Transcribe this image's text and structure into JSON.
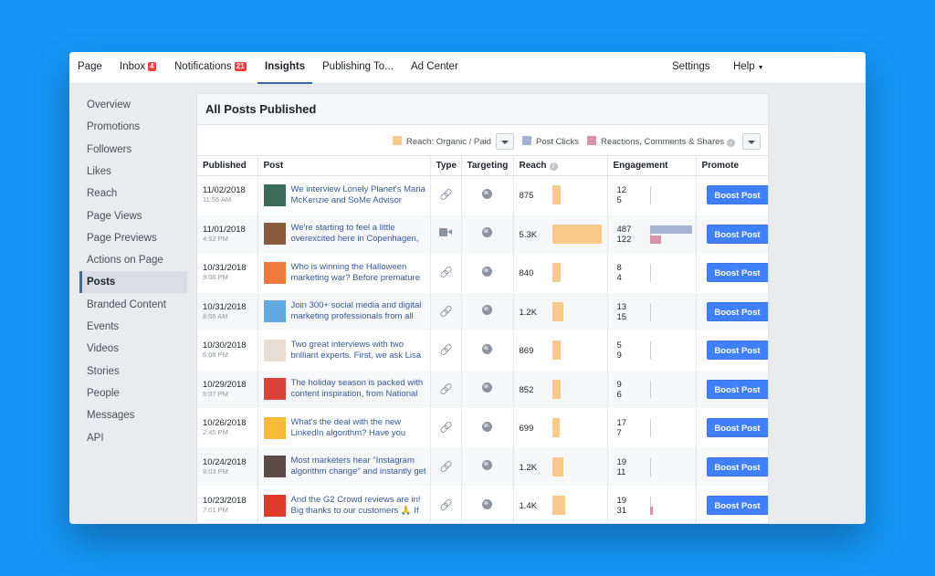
{
  "topnav": {
    "page": "Page",
    "inbox": "Inbox",
    "inbox_badge": "4",
    "notifications": "Notifications",
    "notifications_badge": "21",
    "insights": "Insights",
    "publishing": "Publishing To...",
    "ad_center": "Ad Center",
    "settings": "Settings",
    "help": "Help"
  },
  "sidebar": {
    "items": [
      "Overview",
      "Promotions",
      "Followers",
      "Likes",
      "Reach",
      "Page Views",
      "Page Previews",
      "Actions on Page",
      "Posts",
      "Branded Content",
      "Events",
      "Videos",
      "Stories",
      "People",
      "Messages",
      "API"
    ],
    "active": "Posts"
  },
  "panel": {
    "title": "All Posts Published",
    "legend": {
      "reach": "Reach: Organic / Paid",
      "post_clicks": "Post Clicks",
      "reactions": "Reactions, Comments & Shares"
    },
    "columns": {
      "published": "Published",
      "post": "Post",
      "type": "Type",
      "targeting": "Targeting",
      "reach": "Reach",
      "engagement": "Engagement",
      "promote": "Promote"
    },
    "boost_label": "Boost Post"
  },
  "colors": {
    "reach": "#f7c98b",
    "post_clicks": "#a4b3d1",
    "reactions": "#d993a6",
    "accent": "#4267b2",
    "boost": "#4080ff",
    "background": "#1596f5"
  },
  "posts": [
    {
      "date": "11/02/2018",
      "time": "11:55 AM",
      "text": "We interview Lonely Planet's Maria McKenzie and SoMe Advisor",
      "type": "link",
      "reach": "875",
      "reach_value": 875,
      "clicks": 12,
      "reactions": 5,
      "thumb": "#3d6b5a"
    },
    {
      "date": "11/01/2018",
      "time": "4:52 PM",
      "text": "We're starting to feel a little overexcited here in Copenhagen,",
      "type": "video",
      "reach": "5.3K",
      "reach_value": 5300,
      "clicks": 487,
      "reactions": 122,
      "thumb": "#8a5a3c"
    },
    {
      "date": "10/31/2018",
      "time": "9:06 PM",
      "text": "Who is winning the Halloween marketing war? Before premature",
      "type": "link",
      "reach": "840",
      "reach_value": 840,
      "clicks": 8,
      "reactions": 4,
      "thumb": "#f07a3a"
    },
    {
      "date": "10/31/2018",
      "time": "8:06 AM",
      "text": "Join 300+ social media and digital marketing professionals from all",
      "type": "link",
      "reach": "1.2K",
      "reach_value": 1200,
      "clicks": 13,
      "reactions": 15,
      "thumb": "#5fa8e0"
    },
    {
      "date": "10/30/2018",
      "time": "6:08 PM",
      "text": "Two great interviews with two brilliant experts. First, we ask Lisa",
      "type": "link",
      "reach": "869",
      "reach_value": 869,
      "clicks": 5,
      "reactions": 9,
      "thumb": "#e8ddd2"
    },
    {
      "date": "10/29/2018",
      "time": "5:07 PM",
      "text": "The holiday season is packed with content inspiration, from National",
      "type": "link",
      "reach": "852",
      "reach_value": 852,
      "clicks": 9,
      "reactions": 6,
      "thumb": "#d8443a"
    },
    {
      "date": "10/26/2018",
      "time": "2:45 PM",
      "text": "What's the deal with the new LinkedIn algorithm? Have you",
      "type": "link",
      "reach": "699",
      "reach_value": 699,
      "clicks": 17,
      "reactions": 7,
      "thumb": "#f6b93b"
    },
    {
      "date": "10/24/2018",
      "time": "9:03 PM",
      "text": "Most marketers hear \"Instagram algorithm change\" and instantly get",
      "type": "link",
      "reach": "1.2K",
      "reach_value": 1200,
      "clicks": 19,
      "reactions": 11,
      "thumb": "#5a4a48"
    },
    {
      "date": "10/23/2018",
      "time": "7:01 PM",
      "text": "And the G2 Crowd reviews are in! Big thanks to our customers 🙏 If",
      "type": "link",
      "reach": "1.4K",
      "reach_value": 1400,
      "clicks": 19,
      "reactions": 31,
      "thumb": "#e03a2e"
    }
  ]
}
